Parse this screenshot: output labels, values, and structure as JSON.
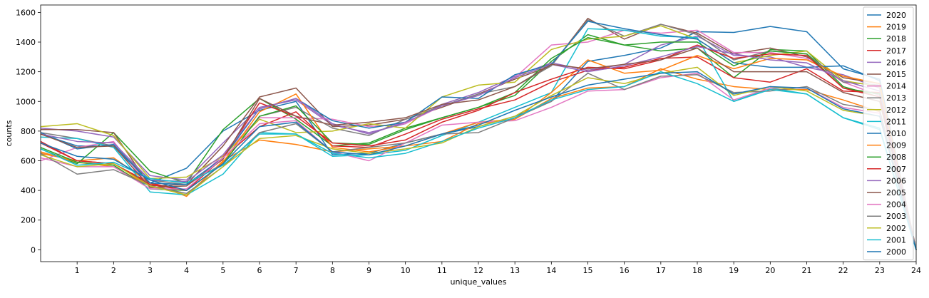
{
  "chart_data": {
    "type": "line",
    "title": "",
    "xlabel": "unique_values",
    "ylabel": "counts",
    "xlim": [
      0,
      24
    ],
    "ylim": [
      -80,
      1650
    ],
    "x_ticks": [
      1,
      2,
      3,
      4,
      5,
      6,
      7,
      8,
      9,
      10,
      11,
      12,
      13,
      14,
      15,
      16,
      17,
      18,
      19,
      20,
      21,
      22,
      23,
      24
    ],
    "y_ticks": [
      0,
      200,
      400,
      600,
      800,
      1000,
      1200,
      1400,
      1600
    ],
    "grid": false,
    "legend": "right",
    "x": [
      0,
      1,
      2,
      3,
      4,
      5,
      6,
      7,
      8,
      9,
      10,
      11,
      12,
      13,
      14,
      15,
      16,
      17,
      18,
      19,
      20,
      21,
      22,
      23,
      24
    ],
    "series": [
      {
        "name": "2020",
        "color": "#1f77b4",
        "values": [
          780,
          700,
          700,
          450,
          550,
          800,
          940,
          1000,
          640,
          650,
          720,
          780,
          830,
          900,
          1000,
          1270,
          1310,
          1360,
          1470,
          1465,
          1505,
          1470,
          1220,
          1150,
          0
        ]
      },
      {
        "name": "2019",
        "color": "#ff7f0e",
        "values": [
          650,
          600,
          620,
          450,
          360,
          600,
          740,
          710,
          660,
          680,
          700,
          730,
          850,
          880,
          1020,
          1090,
          1100,
          1220,
          1150,
          1100,
          1080,
          1080,
          1010,
          930,
          0
        ]
      },
      {
        "name": "2018",
        "color": "#2ca02c",
        "values": [
          680,
          580,
          790,
          530,
          450,
          810,
          1020,
          880,
          700,
          720,
          820,
          890,
          960,
          1040,
          1270,
          1450,
          1380,
          1340,
          1360,
          1160,
          1350,
          1340,
          1100,
          1030,
          0
        ]
      },
      {
        "name": "2017",
        "color": "#d62728",
        "values": [
          730,
          600,
          580,
          450,
          400,
          620,
          830,
          930,
          700,
          690,
          780,
          880,
          950,
          1010,
          1130,
          1210,
          1230,
          1290,
          1300,
          1160,
          1130,
          1220,
          1070,
          1060,
          0
        ]
      },
      {
        "name": "2016",
        "color": "#9467bd",
        "values": [
          820,
          800,
          760,
          500,
          470,
          720,
          960,
          1010,
          840,
          790,
          850,
          980,
          1060,
          1170,
          1260,
          1210,
          1250,
          1380,
          1440,
          1310,
          1300,
          1230,
          1180,
          1090,
          0
        ]
      },
      {
        "name": "2015",
        "color": "#8c564b",
        "values": [
          810,
          810,
          790,
          430,
          440,
          700,
          1030,
          1090,
          830,
          840,
          880,
          960,
          1050,
          1150,
          1240,
          1560,
          1420,
          1520,
          1460,
          1320,
          1360,
          1300,
          1160,
          1120,
          0
        ]
      },
      {
        "name": "2014",
        "color": "#e377c2",
        "values": [
          600,
          690,
          730,
          420,
          400,
          640,
          890,
          890,
          880,
          830,
          850,
          970,
          1040,
          1160,
          1380,
          1400,
          1480,
          1460,
          1480,
          1330,
          1330,
          1290,
          1130,
          1040,
          0
        ]
      },
      {
        "name": "2013",
        "color": "#7f7f7f",
        "values": [
          790,
          750,
          700,
          470,
          440,
          580,
          900,
          960,
          820,
          770,
          880,
          970,
          1050,
          1100,
          1240,
          1550,
          1440,
          1520,
          1450,
          1280,
          1340,
          1320,
          1130,
          1110,
          0
        ]
      },
      {
        "name": "2012",
        "color": "#bcbd22",
        "values": [
          830,
          850,
          770,
          480,
          490,
          630,
          880,
          790,
          800,
          850,
          820,
          1030,
          1110,
          1130,
          1350,
          1420,
          1440,
          1510,
          1420,
          1260,
          1310,
          1340,
          1140,
          1100,
          0
        ]
      },
      {
        "name": "2011",
        "color": "#17becf",
        "values": [
          760,
          750,
          690,
          390,
          370,
          510,
          790,
          780,
          630,
          640,
          670,
          770,
          860,
          960,
          1060,
          1490,
          1480,
          1440,
          1430,
          1000,
          1090,
          1050,
          890,
          820,
          0
        ]
      },
      {
        "name": "2010",
        "color": "#1f77b4",
        "values": [
          790,
          680,
          710,
          450,
          440,
          620,
          950,
          1020,
          870,
          820,
          860,
          1030,
          1020,
          1180,
          1250,
          1540,
          1490,
          1450,
          1420,
          1260,
          1230,
          1230,
          1240,
          1140,
          0
        ]
      },
      {
        "name": "2009",
        "color": "#ff7f0e",
        "values": [
          660,
          590,
          560,
          430,
          370,
          590,
          930,
          1050,
          690,
          660,
          700,
          780,
          860,
          880,
          1060,
          1280,
          1190,
          1210,
          1310,
          1220,
          1290,
          1280,
          1170,
          1120,
          0
        ]
      },
      {
        "name": "2008",
        "color": "#2ca02c",
        "values": [
          690,
          590,
          570,
          410,
          400,
          580,
          900,
          970,
          720,
          710,
          810,
          890,
          960,
          1060,
          1290,
          1430,
          1380,
          1400,
          1400,
          1240,
          1340,
          1320,
          1090,
          1050,
          0
        ]
      },
      {
        "name": "2007",
        "color": "#d62728",
        "values": [
          720,
          600,
          580,
          440,
          400,
          620,
          990,
          900,
          720,
          700,
          740,
          860,
          940,
          1060,
          1150,
          1230,
          1220,
          1280,
          1380,
          1290,
          1320,
          1310,
          1090,
          1030,
          0
        ]
      },
      {
        "name": "2006",
        "color": "#9467bd",
        "values": [
          780,
          730,
          720,
          470,
          460,
          640,
          950,
          1020,
          850,
          780,
          860,
          970,
          1040,
          1160,
          1250,
          1200,
          1240,
          1300,
          1370,
          1320,
          1280,
          1260,
          1140,
          1070,
          0
        ]
      },
      {
        "name": "2005",
        "color": "#8c564b",
        "values": [
          780,
          690,
          700,
          420,
          430,
          610,
          1020,
          900,
          840,
          860,
          890,
          980,
          1010,
          1100,
          1250,
          1220,
          1250,
          1280,
          1360,
          1200,
          1200,
          1200,
          1060,
          1000,
          0
        ]
      },
      {
        "name": "2004",
        "color": "#e377c2",
        "values": [
          620,
          560,
          560,
          410,
          410,
          620,
          850,
          870,
          660,
          600,
          720,
          840,
          860,
          870,
          960,
          1070,
          1080,
          1160,
          1190,
          1010,
          1090,
          1090,
          960,
          920,
          0
        ]
      },
      {
        "name": "2003",
        "color": "#7f7f7f",
        "values": [
          650,
          510,
          540,
          430,
          380,
          560,
          790,
          850,
          660,
          690,
          720,
          780,
          790,
          890,
          1000,
          1190,
          1080,
          1170,
          1180,
          1060,
          1070,
          1100,
          980,
          940,
          0
        ]
      },
      {
        "name": "2002",
        "color": "#bcbd22",
        "values": [
          640,
          560,
          580,
          430,
          370,
          560,
          750,
          770,
          680,
          650,
          680,
          720,
          830,
          900,
          1040,
          1160,
          1120,
          1190,
          1230,
          1040,
          1100,
          1070,
          940,
          900,
          0
        ]
      },
      {
        "name": "2001",
        "color": "#17becf",
        "values": [
          680,
          570,
          590,
          480,
          450,
          570,
          780,
          780,
          650,
          620,
          650,
          730,
          820,
          890,
          1010,
          1080,
          1100,
          1200,
          1120,
          1000,
          1080,
          1050,
          890,
          810,
          0
        ]
      },
      {
        "name": "2000",
        "color": "#1f77b4",
        "values": [
          720,
          630,
          610,
          470,
          400,
          580,
          830,
          860,
          660,
          640,
          700,
          780,
          840,
          940,
          1030,
          1110,
          1150,
          1190,
          1200,
          1050,
          1100,
          1090,
          950,
          900,
          0
        ]
      }
    ]
  }
}
